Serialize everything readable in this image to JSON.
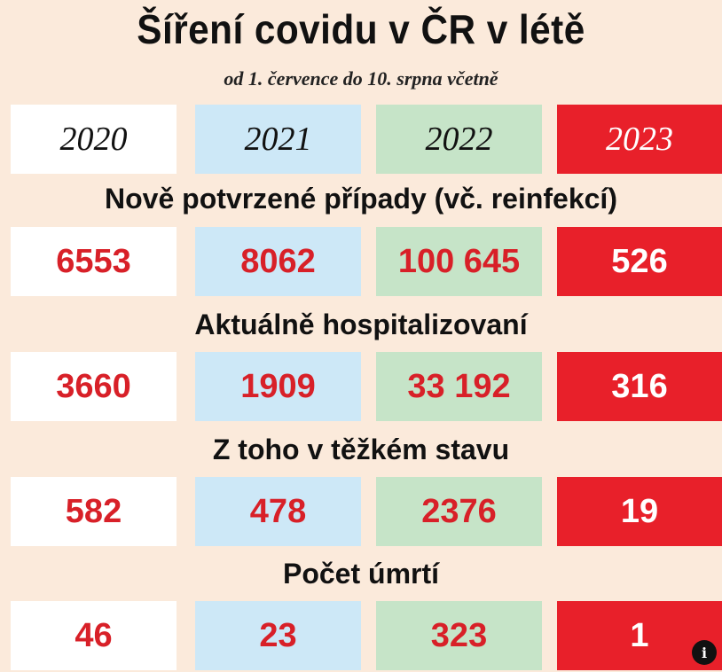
{
  "title": "Šíření covidu v ČR v létě",
  "subtitle": "od 1. července do 10. srpna včetně",
  "colors": {
    "background": "#fbeadb",
    "col_2020": "#ffffff",
    "col_2021": "#cde8f7",
    "col_2022": "#c6e4c8",
    "col_2023": "#e8202a",
    "value_text": "#d82028"
  },
  "info_icon": "info-icon",
  "info_glyph": "i",
  "chart_data": {
    "type": "table",
    "title": "Šíření covidu v ČR v létě",
    "subtitle": "od 1. července do 10. srpna včetně",
    "years": [
      "2020",
      "2021",
      "2022",
      "2023"
    ],
    "rows": [
      {
        "label": "Nově potvrzené případy (vč. reinfekcí)",
        "values": [
          "6553",
          "8062",
          "100 645",
          "526"
        ]
      },
      {
        "label": "Aktuálně hospitalizovaní",
        "values": [
          "3660",
          "1909",
          "33 192",
          "316"
        ]
      },
      {
        "label": "Z toho v těžkém stavu",
        "values": [
          "582",
          "478",
          "2376",
          "19"
        ]
      },
      {
        "label": "Počet úmrtí",
        "values": [
          "46",
          "23",
          "323",
          "1"
        ]
      }
    ]
  }
}
